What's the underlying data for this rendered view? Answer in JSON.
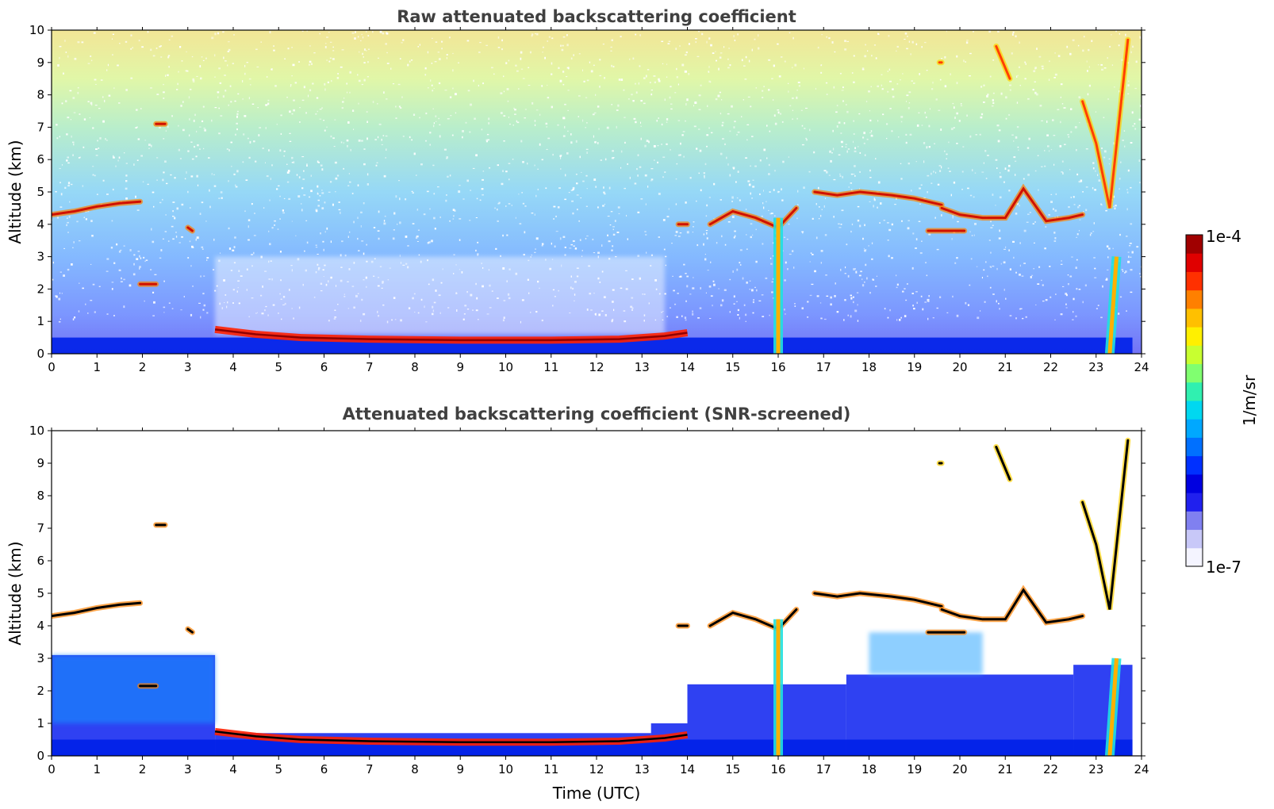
{
  "chart_data": [
    {
      "type": "heatmap",
      "title": "Raw attenuated backscattering coefficient",
      "xlabel": "",
      "ylabel": "Altitude (km)",
      "xlim": [
        0,
        24
      ],
      "ylim": [
        0,
        10
      ],
      "xticks": [
        "0",
        "1",
        "2",
        "3",
        "4",
        "5",
        "6",
        "7",
        "8",
        "9",
        "10",
        "11",
        "12",
        "13",
        "14",
        "15",
        "16",
        "17",
        "18",
        "19",
        "20",
        "21",
        "22",
        "23",
        "24"
      ],
      "yticks": [
        "0",
        "1",
        "2",
        "3",
        "4",
        "5",
        "6",
        "7",
        "8",
        "9",
        "10"
      ],
      "noise_background": true,
      "features": [
        {
          "kind": "boundary_layer_top",
          "x": [
            3.6,
            4.5,
            5.5,
            7.0,
            9.0,
            11.0,
            12.5,
            13.5,
            14.0
          ],
          "y": [
            0.75,
            0.6,
            0.5,
            0.45,
            0.42,
            0.42,
            0.45,
            0.55,
            0.65
          ]
        },
        {
          "kind": "cloud_layer",
          "x": [
            0.0,
            0.5,
            1.0,
            1.5,
            1.95
          ],
          "y": [
            4.3,
            4.4,
            4.55,
            4.65,
            4.7
          ]
        },
        {
          "kind": "cloud_layer",
          "x": [
            1.95,
            2.3
          ],
          "y": [
            2.15,
            2.15
          ]
        },
        {
          "kind": "cloud_layer",
          "x": [
            2.3,
            2.5
          ],
          "y": [
            7.1,
            7.1
          ]
        },
        {
          "kind": "cloud_layer",
          "x": [
            3.0,
            3.1
          ],
          "y": [
            3.9,
            3.8
          ]
        },
        {
          "kind": "cloud_layer",
          "x": [
            13.8,
            14.0
          ],
          "y": [
            4.0,
            4.0
          ]
        },
        {
          "kind": "cloud_layer",
          "x": [
            14.5,
            15.0,
            15.5,
            16.0,
            16.4
          ],
          "y": [
            4.0,
            4.4,
            4.2,
            3.9,
            4.5
          ]
        },
        {
          "kind": "cloud_layer",
          "x": [
            16.8,
            17.3,
            17.8,
            18.5,
            19.0,
            19.6
          ],
          "y": [
            5.0,
            4.9,
            5.0,
            4.9,
            4.8,
            4.6
          ]
        },
        {
          "kind": "cloud_layer",
          "x": [
            19.6,
            20.0,
            20.5,
            21.0,
            21.4,
            21.9,
            22.4,
            22.7
          ],
          "y": [
            4.5,
            4.3,
            4.2,
            4.2,
            5.1,
            4.1,
            4.2,
            4.3
          ]
        },
        {
          "kind": "cloud_layer",
          "x": [
            19.3,
            19.7,
            20.1
          ],
          "y": [
            3.8,
            3.8,
            3.8
          ]
        },
        {
          "kind": "precip_shaft",
          "x": [
            16.0,
            16.0
          ],
          "y": [
            0.0,
            4.2
          ]
        },
        {
          "kind": "precip_shaft",
          "x": [
            23.3,
            23.45
          ],
          "y": [
            0.0,
            3.0
          ]
        },
        {
          "kind": "cirrus",
          "x": [
            22.7,
            23.0,
            23.3,
            23.7
          ],
          "y": [
            7.8,
            6.5,
            4.5,
            9.7
          ]
        },
        {
          "kind": "cirrus",
          "x": [
            20.8,
            21.1
          ],
          "y": [
            9.5,
            8.5
          ]
        },
        {
          "kind": "cirrus",
          "x": [
            19.55,
            19.6
          ],
          "y": [
            9.0,
            9.0
          ]
        }
      ]
    },
    {
      "type": "heatmap",
      "title": "Attenuated backscattering coefficient (SNR-screened)",
      "xlabel": "Time (UTC)",
      "ylabel": "Altitude (km)",
      "xlim": [
        0,
        24
      ],
      "ylim": [
        0,
        10
      ],
      "xticks": [
        "0",
        "1",
        "2",
        "3",
        "4",
        "5",
        "6",
        "7",
        "8",
        "9",
        "10",
        "11",
        "12",
        "13",
        "14",
        "15",
        "16",
        "17",
        "18",
        "19",
        "20",
        "21",
        "22",
        "23",
        "24"
      ],
      "yticks": [
        "0",
        "1",
        "2",
        "3",
        "4",
        "5",
        "6",
        "7",
        "8",
        "9",
        "10"
      ],
      "noise_background": false,
      "features": [
        {
          "kind": "boundary_layer_top",
          "x": [
            3.6,
            4.5,
            5.5,
            7.0,
            9.0,
            11.0,
            12.5,
            13.5,
            14.0
          ],
          "y": [
            0.75,
            0.6,
            0.5,
            0.45,
            0.42,
            0.42,
            0.45,
            0.55,
            0.65
          ]
        },
        {
          "kind": "cloud_layer",
          "x": [
            0.0,
            0.5,
            1.0,
            1.5,
            1.95
          ],
          "y": [
            4.3,
            4.4,
            4.55,
            4.65,
            4.7
          ]
        },
        {
          "kind": "cloud_layer",
          "x": [
            1.95,
            2.3
          ],
          "y": [
            2.15,
            2.15
          ]
        },
        {
          "kind": "cloud_layer",
          "x": [
            2.3,
            2.5
          ],
          "y": [
            7.1,
            7.1
          ]
        },
        {
          "kind": "cloud_layer",
          "x": [
            3.0,
            3.1
          ],
          "y": [
            3.9,
            3.8
          ]
        },
        {
          "kind": "cloud_layer",
          "x": [
            13.8,
            14.0
          ],
          "y": [
            4.0,
            4.0
          ]
        },
        {
          "kind": "cloud_layer",
          "x": [
            14.5,
            15.0,
            15.5,
            16.0,
            16.4
          ],
          "y": [
            4.0,
            4.4,
            4.2,
            3.9,
            4.5
          ]
        },
        {
          "kind": "cloud_layer",
          "x": [
            16.8,
            17.3,
            17.8,
            18.5,
            19.0,
            19.6
          ],
          "y": [
            5.0,
            4.9,
            5.0,
            4.9,
            4.8,
            4.6
          ]
        },
        {
          "kind": "cloud_layer",
          "x": [
            19.6,
            20.0,
            20.5,
            21.0,
            21.4,
            21.9,
            22.4,
            22.7
          ],
          "y": [
            4.5,
            4.3,
            4.2,
            4.2,
            5.1,
            4.1,
            4.2,
            4.3
          ]
        },
        {
          "kind": "cloud_layer",
          "x": [
            19.3,
            19.7,
            20.1
          ],
          "y": [
            3.8,
            3.8,
            3.8
          ]
        },
        {
          "kind": "precip_shaft",
          "x": [
            16.0,
            16.0
          ],
          "y": [
            0.0,
            4.2
          ]
        },
        {
          "kind": "precip_shaft",
          "x": [
            23.3,
            23.45
          ],
          "y": [
            0.0,
            3.0
          ]
        },
        {
          "kind": "cirrus",
          "x": [
            22.7,
            23.0,
            23.3,
            23.7
          ],
          "y": [
            7.8,
            6.5,
            4.5,
            9.7
          ]
        },
        {
          "kind": "cirrus",
          "x": [
            20.8,
            21.1
          ],
          "y": [
            9.5,
            8.5
          ]
        },
        {
          "kind": "cirrus",
          "x": [
            19.55,
            19.6
          ],
          "y": [
            9.0,
            9.0
          ]
        }
      ]
    }
  ],
  "colorbar": {
    "max_label": "1e-4",
    "min_label": "1e-7",
    "unit_label": "1/m/sr",
    "colors": [
      "#f4f4ff",
      "#c8c8f8",
      "#8080f0",
      "#2020ee",
      "#0000e0",
      "#0030ff",
      "#0070ff",
      "#00a8ff",
      "#00d8f0",
      "#30f0b0",
      "#80ff70",
      "#c8ff30",
      "#fff000",
      "#ffc000",
      "#ff8000",
      "#ff3000",
      "#e00000",
      "#a00000"
    ]
  }
}
